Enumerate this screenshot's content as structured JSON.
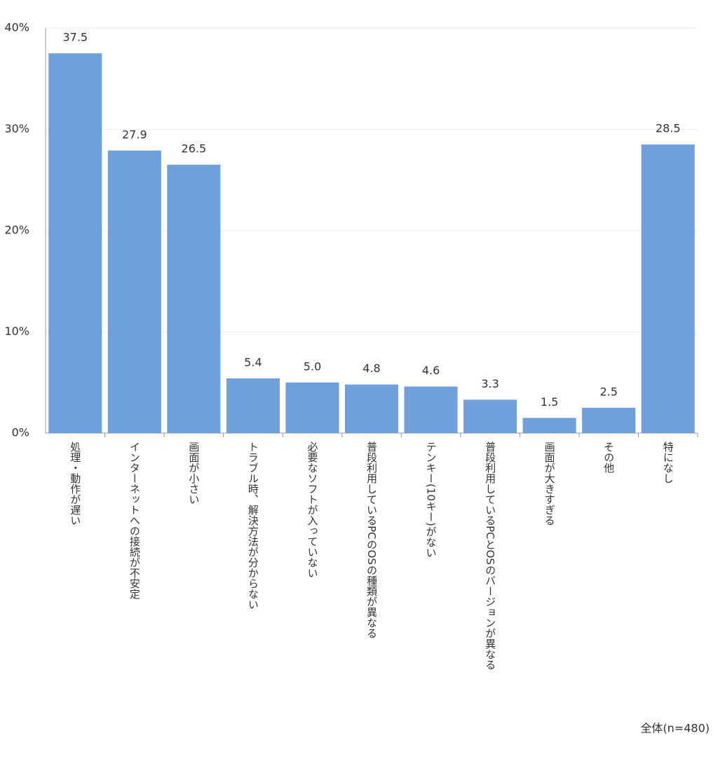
{
  "chart_data": {
    "type": "bar",
    "categories": [
      "処理・動作が遅い",
      "インターネットへの接続が不安定",
      "画面が小さい",
      "トラブル時、解決方法が分からない",
      "必要なソフトが入っていない",
      "普段利用しているPCのOSの種類が異なる",
      "テンキー(10キー)がない",
      "普段利用しているPCとOSのバージョンが異なる",
      "画面が大きすぎる",
      "その他",
      "特になし"
    ],
    "values": [
      37.5,
      27.9,
      26.5,
      5.4,
      5.0,
      4.8,
      4.6,
      3.3,
      1.5,
      2.5,
      28.5
    ],
    "value_labels": [
      "37.5",
      "27.9",
      "26.5",
      "5.4",
      "5.0",
      "4.8",
      "4.6",
      "3.3",
      "1.5",
      "2.5",
      "28.5"
    ],
    "color": "#6fa0dc",
    "ylim": [
      0,
      40
    ],
    "yticks": [
      {
        "value": 0,
        "label": "0%"
      },
      {
        "value": 10,
        "label": "10%"
      },
      {
        "value": 20,
        "label": "20%"
      },
      {
        "value": 30,
        "label": "30%"
      },
      {
        "value": 40,
        "label": "40%"
      }
    ],
    "grid": true,
    "annotation": "全体(n=480)"
  }
}
